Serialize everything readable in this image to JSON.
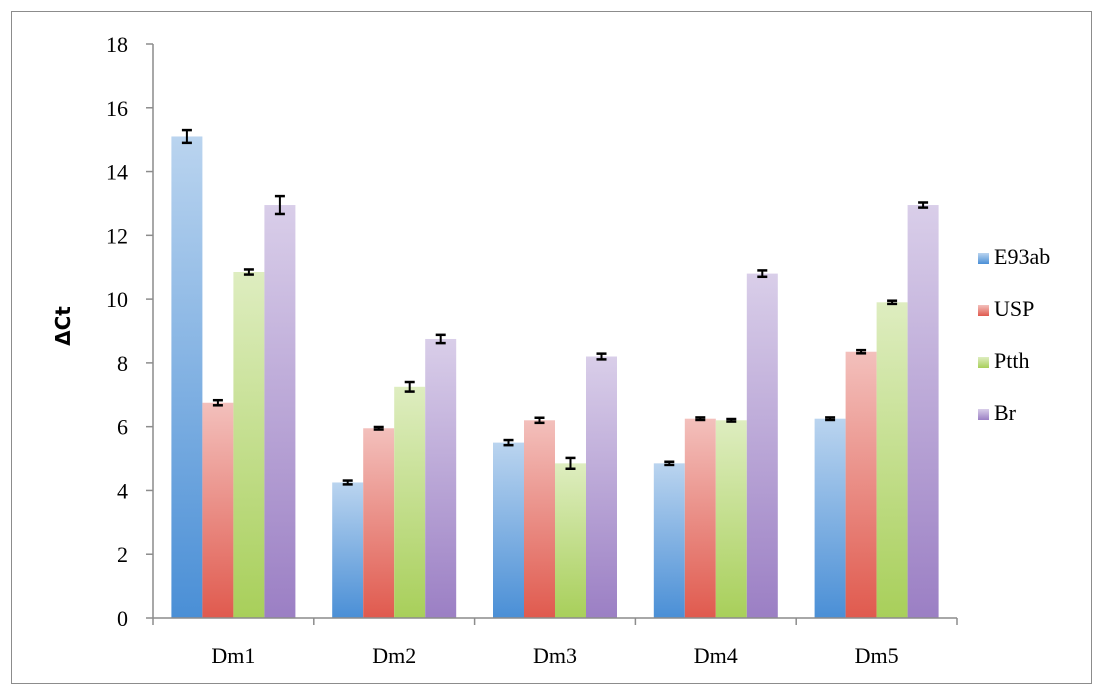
{
  "chart_data": {
    "type": "bar",
    "title": "",
    "xlabel": "",
    "ylabel": "ΔCt",
    "ylim": [
      0,
      18
    ],
    "yticks": [
      0,
      2,
      4,
      6,
      8,
      10,
      12,
      14,
      16,
      18
    ],
    "grid": false,
    "legend_position": "right",
    "categories": [
      "Dm1",
      "Dm2",
      "Dm3",
      "Dm4",
      "Dm5"
    ],
    "series": [
      {
        "name": "E93ab",
        "color": "#4a8fd6",
        "values": [
          15.1,
          4.25,
          5.5,
          4.85,
          6.25
        ],
        "errors": [
          0.2,
          0.06,
          0.08,
          0.05,
          0.04
        ]
      },
      {
        "name": "USP",
        "color": "#e05a4e",
        "values": [
          6.75,
          5.95,
          6.2,
          6.25,
          8.35
        ],
        "errors": [
          0.08,
          0.04,
          0.08,
          0.04,
          0.05
        ]
      },
      {
        "name": "Ptth",
        "color": "#a8cf5a",
        "values": [
          10.85,
          7.25,
          4.85,
          6.2,
          9.9
        ],
        "errors": [
          0.08,
          0.15,
          0.17,
          0.04,
          0.05
        ]
      },
      {
        "name": "Br",
        "color": "#9b7fc4",
        "values": [
          12.95,
          8.75,
          8.2,
          10.8,
          12.95
        ],
        "errors": [
          0.28,
          0.13,
          0.09,
          0.1,
          0.08
        ]
      }
    ]
  }
}
